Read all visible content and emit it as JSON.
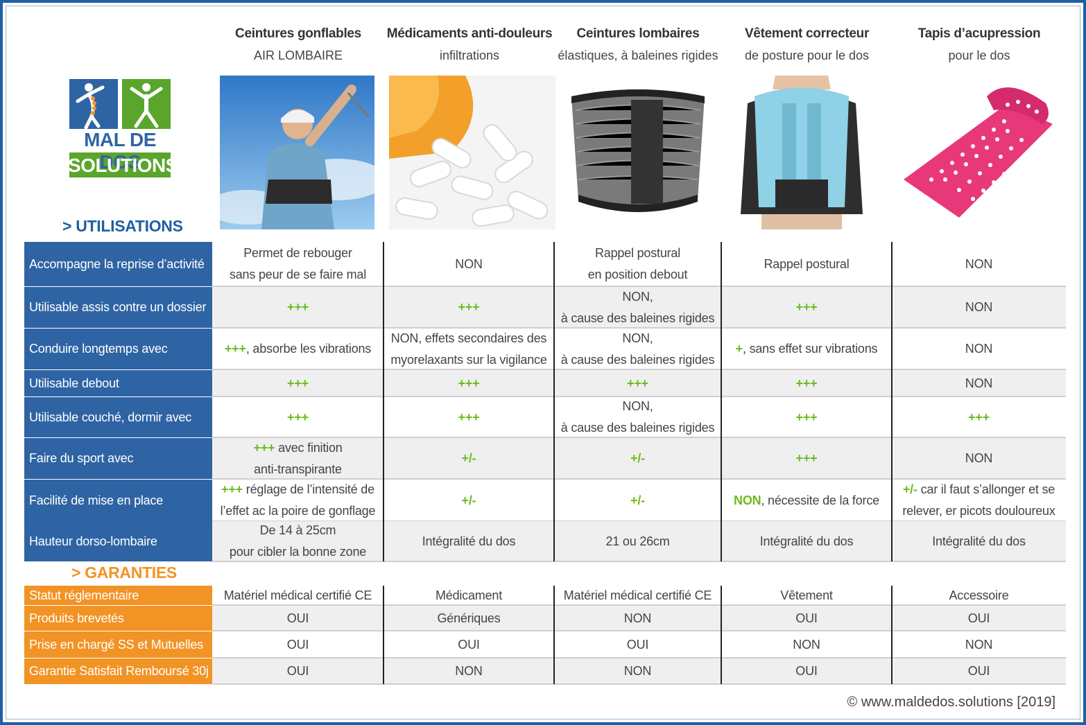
{
  "columns": [
    {
      "title": "Ceintures gonflables",
      "subtitle": "AIR LOMBAIRE"
    },
    {
      "title": "Médicaments anti-douleurs",
      "subtitle": "infiltrations"
    },
    {
      "title": "Ceintures lombaires",
      "subtitle": "élastiques, à baleines rigides"
    },
    {
      "title": "Vêtement correcteur",
      "subtitle": "de posture pour le dos"
    },
    {
      "title": "Tapis d’acupression",
      "subtitle": "pour le dos"
    }
  ],
  "logo": {
    "line1": "MAL DE DOS",
    "line2": "SOLUTIONS"
  },
  "sections": {
    "utilisations": "> UTILISATIONS",
    "garanties": "> GARANTIES"
  },
  "utilisations": [
    {
      "label": "Accompagne la reprise d’activité",
      "cells": [
        {
          "l1": "Permet de rebouger",
          "l2": "sans peur de se faire mal"
        },
        {
          "text": "NON"
        },
        {
          "l1": "Rappel postural",
          "l2": "en position debout"
        },
        {
          "text": "Rappel postural"
        },
        {
          "text": "NON"
        }
      ]
    },
    {
      "label": "Utilisable assis contre un dossier",
      "cells": [
        {
          "g": "+++"
        },
        {
          "g": "+++"
        },
        {
          "l1": "NON,",
          "l2": "à cause des baleines rigides"
        },
        {
          "g": "+++"
        },
        {
          "text": "NON"
        }
      ]
    },
    {
      "label": "Conduire longtemps avec",
      "cells": [
        {
          "g": "+++",
          "rest": ", absorbe les vibrations"
        },
        {
          "l1": "NON, effets secondaires des",
          "l2": "myorelaxants sur la vigilance"
        },
        {
          "l1": "NON,",
          "l2": "à cause des baleines rigides"
        },
        {
          "g": "+",
          "rest": ", sans effet sur vibrations"
        },
        {
          "text": "NON"
        }
      ]
    },
    {
      "label": "Utilisable debout",
      "cells": [
        {
          "g": "+++"
        },
        {
          "g": "+++"
        },
        {
          "g": "+++"
        },
        {
          "g": "+++"
        },
        {
          "text": "NON"
        }
      ]
    },
    {
      "label": "Utilisable couché, dormir avec",
      "cells": [
        {
          "g": "+++"
        },
        {
          "g": "+++"
        },
        {
          "l1": "NON,",
          "l2": "à cause des baleines rigides"
        },
        {
          "g": "+++"
        },
        {
          "g": "+++"
        }
      ]
    },
    {
      "label": "Faire du sport avec",
      "cells": [
        {
          "g": "+++",
          "rest": " avec finition",
          "l2": "anti-transpirante"
        },
        {
          "g": "+/-"
        },
        {
          "g": "+/-"
        },
        {
          "g": "+++"
        },
        {
          "text": "NON"
        }
      ]
    },
    {
      "label": "Facilité de mise en place",
      "cells": [
        {
          "g": "+++",
          "rest": " réglage de l’intensité de",
          "l2": "l’effet ac la poire de gonflage"
        },
        {
          "g": "+/-"
        },
        {
          "g": "+/-"
        },
        {
          "g": "NON",
          "rest": ", nécessite de la force"
        },
        {
          "g": "+/-",
          "rest": " car il faut s’allonger et se",
          "l2": "relever, er picots douloureux"
        }
      ]
    },
    {
      "label": "Hauteur dorso-lombaire",
      "cells": [
        {
          "l1": "De 14 à 25cm",
          "l2": "pour cibler la bonne zone"
        },
        {
          "text": "Intégralité du dos"
        },
        {
          "text": "21 ou 26cm"
        },
        {
          "text": "Intégralité du dos"
        },
        {
          "text": "Intégralité du dos"
        }
      ]
    }
  ],
  "garanties": [
    {
      "label": "Statut réglementaire",
      "cells": [
        "Matériel médical certifié CE",
        "Médicament",
        "Matériel médical certifié CE",
        "Vêtement",
        "Accessoire"
      ]
    },
    {
      "label": "Produits brevetés",
      "cells": [
        "OUI",
        "Génériques",
        "NON",
        "OUI",
        "OUI"
      ]
    },
    {
      "label": "Prise en chargé SS et Mutuelles",
      "cells": [
        "OUI",
        "OUI",
        "OUI",
        "NON",
        "NON"
      ]
    },
    {
      "label": "Garantie Satisfait Remboursé 30j",
      "cells": [
        "OUI",
        "NON",
        "NON",
        "OUI",
        "OUI"
      ]
    }
  ],
  "footer": "© www.maldedos.solutions [2019]",
  "colors": {
    "blue": "#2f64a4",
    "orange": "#f29325",
    "green": "#6cbb1e",
    "logo_green": "#5aa52b"
  }
}
